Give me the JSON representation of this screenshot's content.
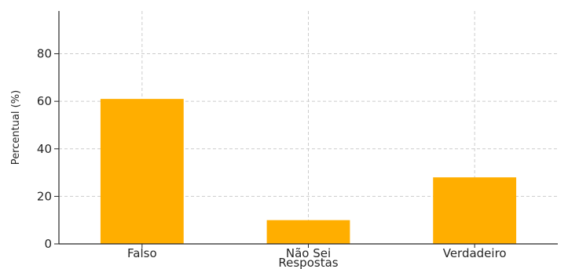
{
  "chart_data": {
    "type": "bar",
    "categories": [
      "Falso",
      "Não Sei",
      "Verdadeiro"
    ],
    "values": [
      61,
      10,
      28
    ],
    "title": "",
    "xlabel": "Respostas",
    "ylabel": "Percentual (%)",
    "ylim": [
      0,
      98
    ],
    "yticks": [
      0,
      20,
      40,
      60,
      80
    ],
    "grid": true,
    "bar_color": "#FFAE00"
  }
}
